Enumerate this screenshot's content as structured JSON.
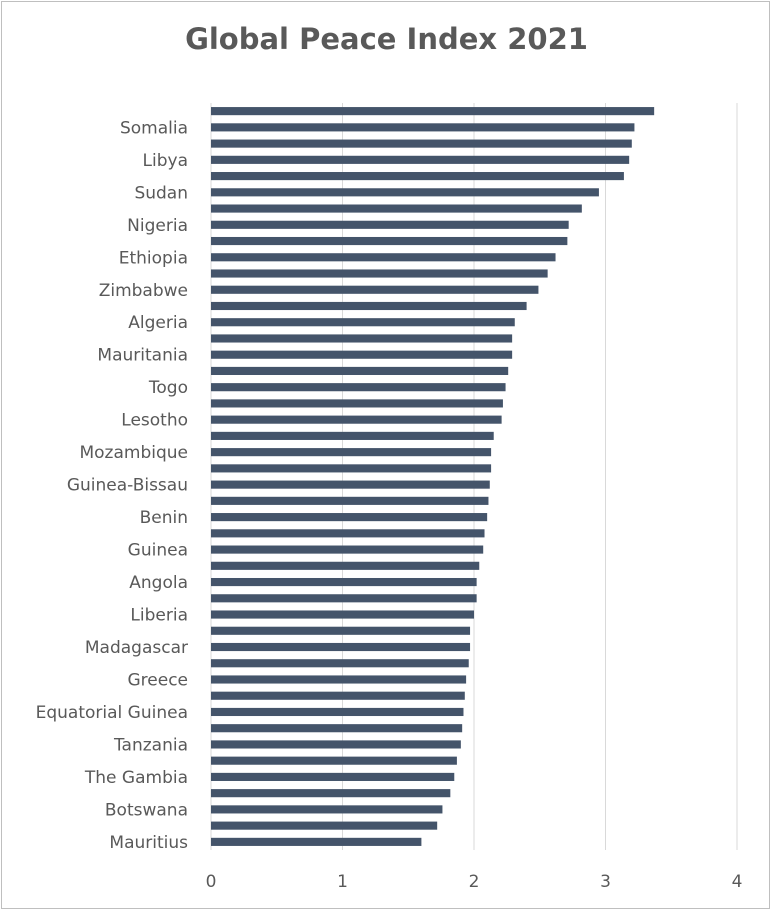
{
  "chart_data": {
    "type": "bar",
    "orientation": "horizontal",
    "title": "Global Peace Index 2021",
    "xlabel": "",
    "ylabel": "",
    "xlim": [
      0,
      4
    ],
    "x_ticks": [
      "0",
      "1",
      "2",
      "3",
      "4"
    ],
    "grid": "vertical",
    "bar_color": "#44546a",
    "categories": [
      "",
      "Somalia",
      "",
      "Libya",
      "",
      "Sudan",
      "",
      "Nigeria",
      "",
      "Ethiopia",
      "",
      "Zimbabwe",
      "",
      "Algeria",
      "",
      "Mauritania",
      "",
      "Togo",
      "",
      "Lesotho",
      "",
      "Mozambique",
      "",
      "Guinea-Bissau",
      "",
      "Benin",
      "",
      "Guinea",
      "",
      "Angola",
      "",
      "Liberia",
      "",
      "Madagascar",
      "",
      "Greece",
      "",
      "Equatorial Guinea",
      "",
      "Tanzania",
      "",
      "The Gambia",
      "",
      "Botswana",
      "",
      "Mauritius"
    ],
    "values": [
      3.37,
      3.22,
      3.2,
      3.18,
      3.14,
      2.95,
      2.82,
      2.72,
      2.71,
      2.62,
      2.56,
      2.49,
      2.4,
      2.31,
      2.29,
      2.29,
      2.26,
      2.24,
      2.22,
      2.21,
      2.15,
      2.13,
      2.13,
      2.12,
      2.11,
      2.1,
      2.08,
      2.07,
      2.04,
      2.02,
      2.02,
      2.0,
      1.97,
      1.97,
      1.96,
      1.94,
      1.93,
      1.92,
      1.91,
      1.9,
      1.87,
      1.85,
      1.82,
      1.76,
      1.72,
      1.6
    ]
  }
}
